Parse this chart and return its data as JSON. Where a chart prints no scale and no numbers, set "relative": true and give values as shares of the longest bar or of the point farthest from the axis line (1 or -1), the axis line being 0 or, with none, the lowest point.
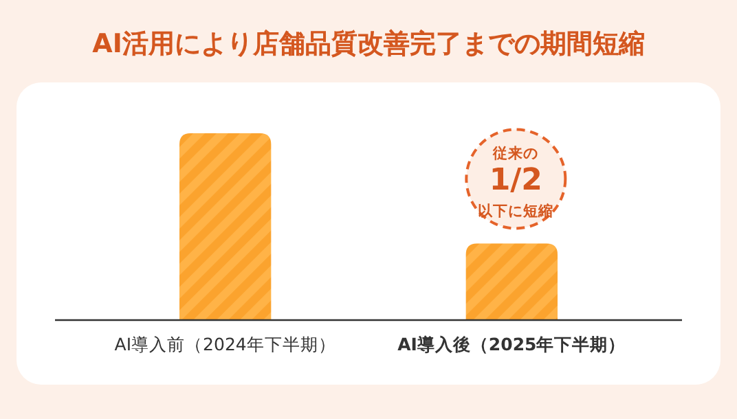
{
  "chart_data": {
    "type": "bar",
    "title": "AI活用により店舗品質改善完了までの期間短縮",
    "categories": [
      "AI導入前（2024年下半期）",
      "AI導入後（2025年下半期）"
    ],
    "values": [
      1,
      0.41
    ],
    "color": "#fba32e",
    "relative": true,
    "annotations": [
      "従来の\n1/2\n以下に短縮"
    ]
  }
}
